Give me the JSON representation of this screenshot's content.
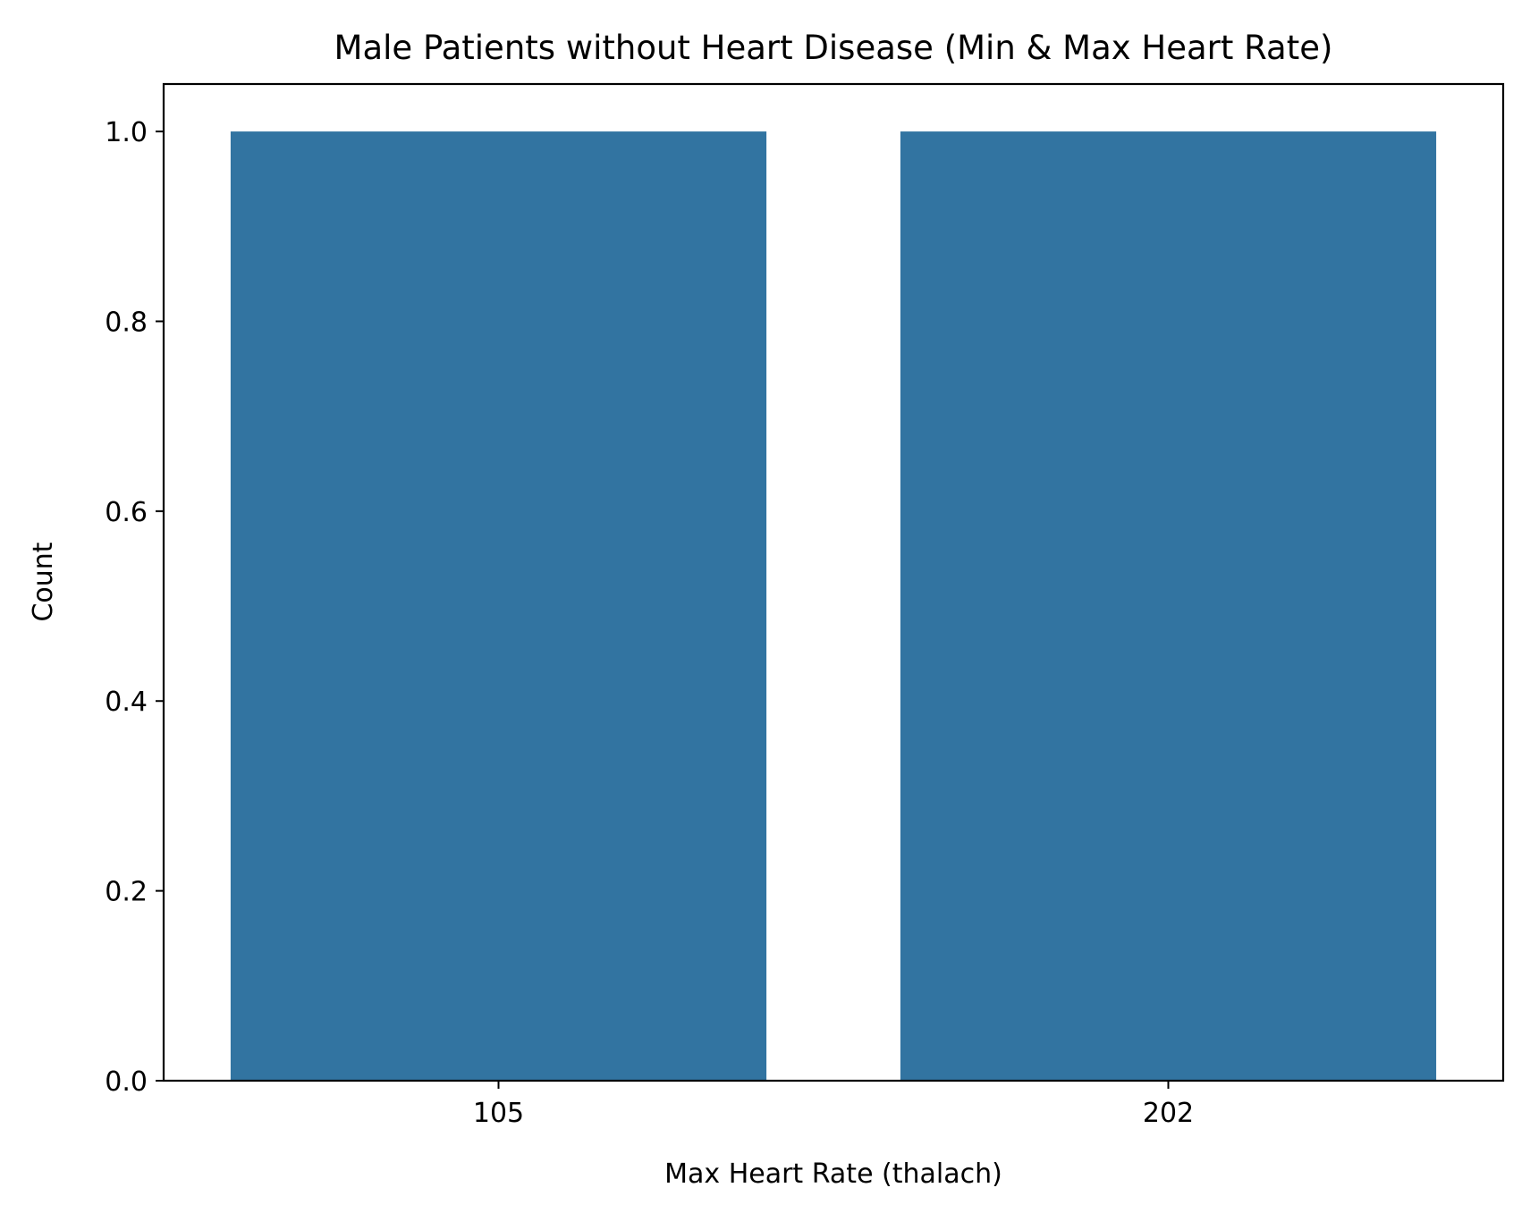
{
  "colors": {
    "bar": "#3274a1",
    "axis": "#000000",
    "background": "#ffffff"
  },
  "chart_data": {
    "type": "bar",
    "title": "Male Patients without Heart Disease (Min & Max Heart Rate)",
    "xlabel": "Max Heart Rate (thalach)",
    "ylabel": "Count",
    "categories": [
      "105",
      "202"
    ],
    "values": [
      1,
      1
    ],
    "ylim": [
      0,
      1.05
    ],
    "yticks": [
      0.0,
      0.2,
      0.4,
      0.6,
      0.8,
      1.0
    ],
    "ytick_labels": [
      "0.0",
      "0.2",
      "0.4",
      "0.6",
      "0.8",
      "1.0"
    ],
    "grid": false,
    "legend": "none"
  }
}
